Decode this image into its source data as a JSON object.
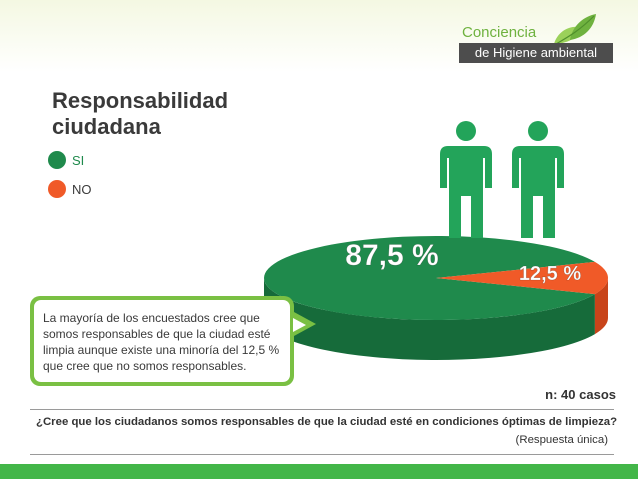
{
  "brand": {
    "word": "Conciencia",
    "tagline": "de Higiene ambiental",
    "icon": "leaf-icon"
  },
  "colors": {
    "si": "#1f8a4c",
    "si_side": "#166b3a",
    "no": "#f05a28",
    "no_side": "#c8441a",
    "person": "#23a45a",
    "accent": "#7ac043",
    "footer": "#43b649"
  },
  "chart_data": {
    "type": "pie",
    "title": "Responsabilidad ciudadana",
    "title_lines": [
      "Responsabilidad",
      "ciudadana"
    ],
    "categories": [
      "SI",
      "NO"
    ],
    "values": [
      87.5,
      12.5
    ],
    "value_labels": [
      "87,5 %",
      "12,5 %"
    ],
    "legend_placement": "top-left",
    "style": "3d",
    "sample_note": "n: 40 casos"
  },
  "callout": {
    "text": "La mayoría de los encuestados cree que somos responsables de que la ciudad esté limpia aunque existe una minoría del 12,5 % que cree que no somos responsables."
  },
  "question": {
    "text": "¿Cree que los ciudadanos somos responsables de que la ciudad esté en condiciones óptimas de limpieza?",
    "note": "(Respuesta única)"
  },
  "decor": {
    "figures": [
      "person-icon",
      "person-icon"
    ]
  }
}
